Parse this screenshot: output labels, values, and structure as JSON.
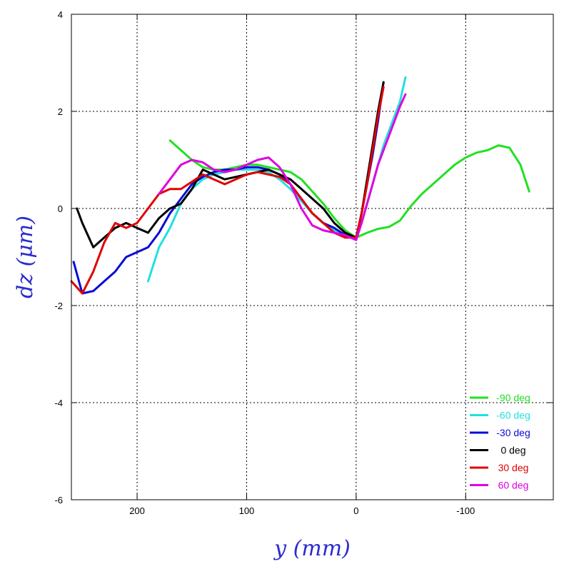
{
  "chart_data": {
    "type": "line",
    "xlabel": "y (mm)",
    "ylabel": "dz (μm)",
    "xlim": [
      260,
      -180
    ],
    "ylim": [
      -6,
      4
    ],
    "x_ticks": [
      200,
      100,
      0,
      -100
    ],
    "y_ticks": [
      -6,
      -4,
      -2,
      0,
      2,
      4
    ],
    "grid": true,
    "legend_position": "bottom-right",
    "colors": {
      "axis": "#000000",
      "ylabel": "#2b2bd0",
      "xlabel": "#2b2bd0"
    },
    "series": [
      {
        "name": "-90 deg",
        "color": "#22e022",
        "x": [
          170,
          160,
          150,
          140,
          130,
          120,
          110,
          100,
          90,
          80,
          70,
          60,
          50,
          40,
          30,
          20,
          10,
          0,
          -10,
          -20,
          -30,
          -40,
          -50,
          -60,
          -70,
          -80,
          -90,
          -100,
          -110,
          -120,
          -130,
          -140,
          -150,
          -158
        ],
        "y": [
          1.4,
          1.2,
          1.0,
          0.85,
          0.8,
          0.8,
          0.85,
          0.9,
          0.9,
          0.85,
          0.8,
          0.75,
          0.6,
          0.35,
          0.1,
          -0.2,
          -0.45,
          -0.6,
          -0.5,
          -0.42,
          -0.38,
          -0.25,
          0.05,
          0.3,
          0.5,
          0.7,
          0.9,
          1.05,
          1.15,
          1.2,
          1.3,
          1.25,
          0.9,
          0.35
        ]
      },
      {
        "name": "-60 deg",
        "color": "#22e0e0",
        "x": [
          190,
          180,
          170,
          160,
          150,
          140,
          130,
          120,
          110,
          100,
          90,
          80,
          70,
          60,
          50,
          40,
          30,
          20,
          10,
          0,
          -5,
          -10,
          -15,
          -20,
          -25,
          -30,
          -35,
          -40,
          -45
        ],
        "y": [
          -1.5,
          -0.8,
          -0.4,
          0.1,
          0.4,
          0.6,
          0.7,
          0.75,
          0.8,
          0.8,
          0.8,
          0.75,
          0.6,
          0.4,
          0.15,
          -0.1,
          -0.3,
          -0.45,
          -0.55,
          -0.6,
          -0.3,
          0.1,
          0.5,
          0.9,
          1.3,
          1.6,
          1.9,
          2.2,
          2.7
        ]
      },
      {
        "name": "-30 deg",
        "color": "#0a0ad8",
        "x": [
          258,
          250,
          240,
          230,
          220,
          210,
          200,
          190,
          180,
          170,
          160,
          150,
          140,
          130,
          120,
          110,
          100,
          90,
          80,
          70,
          60,
          50,
          40,
          30,
          20,
          10,
          0,
          -5,
          -10,
          -15,
          -20,
          -25
        ],
        "y": [
          -1.1,
          -1.75,
          -1.7,
          -1.5,
          -1.3,
          -1.0,
          -0.9,
          -0.8,
          -0.5,
          -0.1,
          0.2,
          0.5,
          0.65,
          0.75,
          0.8,
          0.8,
          0.85,
          0.85,
          0.8,
          0.7,
          0.5,
          0.2,
          -0.1,
          -0.3,
          -0.4,
          -0.55,
          -0.6,
          -0.1,
          0.5,
          1.1,
          1.8,
          2.6
        ]
      },
      {
        "name": "0 deg",
        "color": "#000000",
        "x": [
          255,
          250,
          240,
          230,
          220,
          210,
          200,
          190,
          180,
          170,
          160,
          150,
          140,
          130,
          120,
          110,
          100,
          90,
          80,
          70,
          60,
          50,
          40,
          30,
          20,
          10,
          0,
          -5,
          -10,
          -15,
          -20,
          -25
        ],
        "y": [
          0.0,
          -0.3,
          -0.8,
          -0.6,
          -0.4,
          -0.3,
          -0.4,
          -0.5,
          -0.2,
          0.0,
          0.1,
          0.4,
          0.8,
          0.7,
          0.6,
          0.65,
          0.7,
          0.75,
          0.8,
          0.7,
          0.6,
          0.4,
          0.2,
          0.0,
          -0.3,
          -0.5,
          -0.6,
          -0.1,
          0.6,
          1.3,
          2.0,
          2.6
        ]
      },
      {
        "name": "30 deg",
        "color": "#e00000",
        "x": [
          260,
          250,
          240,
          230,
          220,
          210,
          200,
          190,
          180,
          170,
          160,
          150,
          140,
          130,
          120,
          110,
          100,
          90,
          80,
          70,
          60,
          50,
          40,
          30,
          20,
          10,
          0,
          -5,
          -10,
          -15,
          -20,
          -25
        ],
        "y": [
          -1.5,
          -1.75,
          -1.3,
          -0.7,
          -0.3,
          -0.4,
          -0.3,
          0.0,
          0.3,
          0.4,
          0.4,
          0.55,
          0.7,
          0.6,
          0.5,
          0.6,
          0.7,
          0.75,
          0.7,
          0.65,
          0.5,
          0.2,
          -0.1,
          -0.3,
          -0.5,
          -0.6,
          -0.6,
          -0.1,
          0.5,
          1.2,
          1.9,
          2.5
        ]
      },
      {
        "name": "60 deg",
        "color": "#e000e0",
        "x": [
          180,
          170,
          160,
          150,
          140,
          130,
          120,
          110,
          100,
          90,
          80,
          70,
          60,
          50,
          40,
          30,
          20,
          10,
          0,
          -5,
          -10,
          -15,
          -20,
          -25,
          -30,
          -35,
          -40,
          -45
        ],
        "y": [
          0.3,
          0.6,
          0.9,
          1.0,
          0.95,
          0.8,
          0.75,
          0.8,
          0.9,
          1.0,
          1.05,
          0.85,
          0.5,
          0.0,
          -0.35,
          -0.45,
          -0.5,
          -0.55,
          -0.65,
          -0.3,
          0.1,
          0.5,
          0.9,
          1.2,
          1.5,
          1.8,
          2.1,
          2.35
        ]
      }
    ],
    "legend": [
      {
        "label": "-90 deg",
        "color": "#22e022"
      },
      {
        "label": "-60 deg",
        "color": "#22e0e0"
      },
      {
        "label": "-30 deg",
        "color": "#0a0ad8"
      },
      {
        "label": "0 deg",
        "color": "#000000"
      },
      {
        "label": "30 deg",
        "color": "#e00000"
      },
      {
        "label": "60 deg",
        "color": "#e000e0"
      }
    ]
  }
}
